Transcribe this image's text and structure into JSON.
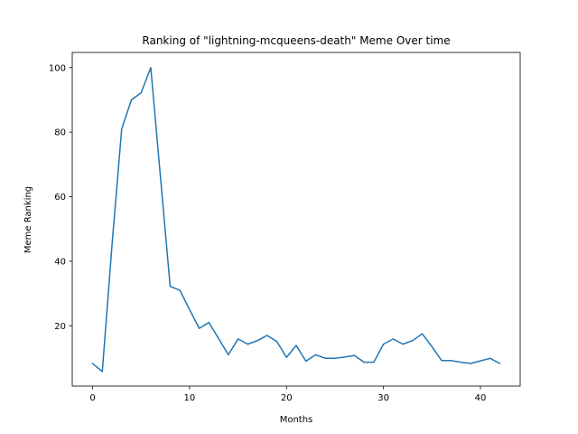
{
  "chart_data": {
    "type": "line",
    "title": "Ranking of \"lightning-mcqueens-death\" Meme Over time",
    "xlabel": "Months",
    "ylabel": "Meme Ranking",
    "xlim": [
      -2.1,
      44.1
    ],
    "ylim": [
      1.3,
      104.7
    ],
    "xticks": [
      0,
      10,
      20,
      30,
      40
    ],
    "yticks": [
      20,
      40,
      60,
      80,
      100
    ],
    "grid": false,
    "line_color": "#1f77b4",
    "series": [
      {
        "x": [
          0,
          1,
          2,
          3,
          4,
          5,
          6,
          7,
          8,
          9,
          10,
          11,
          12,
          13,
          14,
          15,
          16,
          17,
          18,
          19,
          20,
          21,
          22,
          23,
          24,
          25,
          26,
          27,
          28,
          29,
          30,
          31,
          32,
          33,
          34,
          35,
          36,
          37,
          38,
          39,
          40,
          41,
          42
        ],
        "y": [
          8.3,
          5.8,
          45,
          81,
          90,
          92.2,
          100,
          66,
          32.2,
          31,
          25,
          19.2,
          21,
          16,
          11,
          15.9,
          14.3,
          15.4,
          17,
          15.1,
          10.2,
          13.9,
          9,
          11,
          9.9,
          9.9,
          10.3,
          10.8,
          8.7,
          8.7,
          14.3,
          15.9,
          14.3,
          15.4,
          17.5,
          13.5,
          9.2,
          9.2,
          8.7,
          8.3,
          9.1,
          9.9,
          8.3
        ]
      }
    ]
  }
}
